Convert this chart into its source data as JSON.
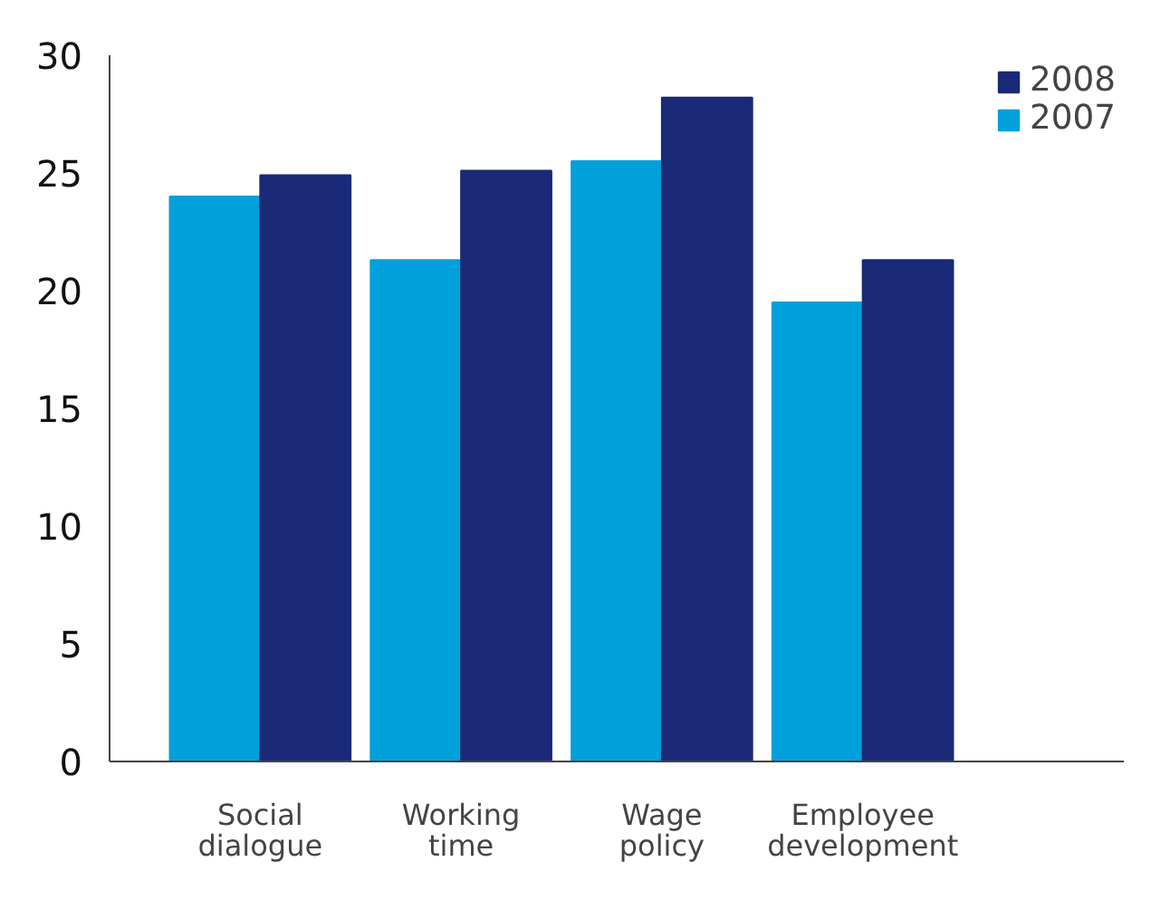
{
  "chart_data": {
    "type": "bar",
    "categories": [
      "Social dialogue",
      "Working time",
      "Wage policy",
      "Employee development"
    ],
    "series": [
      {
        "name": "2007",
        "color": "#00a0dc",
        "values": [
          24.0,
          21.3,
          25.5,
          19.5
        ]
      },
      {
        "name": "2008",
        "color": "#1a2a78",
        "values": [
          24.9,
          25.1,
          28.2,
          21.3
        ]
      }
    ],
    "ylim": [
      0,
      30
    ],
    "yticks": [
      0,
      5,
      10,
      15,
      20,
      25,
      30
    ],
    "grid": false,
    "legend": "top right"
  }
}
